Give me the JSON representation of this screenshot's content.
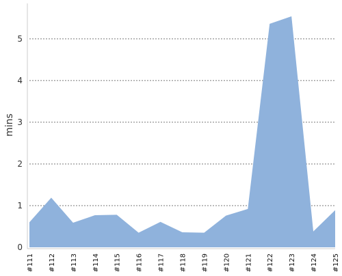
{
  "chart_data": {
    "type": "area",
    "categories": [
      "#111",
      "#112",
      "#113",
      "#114",
      "#115",
      "#116",
      "#117",
      "#118",
      "#119",
      "#120",
      "#121",
      "#122",
      "#123",
      "#124",
      "#125"
    ],
    "values": [
      0.6,
      1.19,
      0.59,
      0.77,
      0.78,
      0.35,
      0.61,
      0.36,
      0.35,
      0.76,
      0.92,
      5.36,
      5.54,
      0.38,
      0.89
    ],
    "ylabel": "mins",
    "ylim": [
      0,
      5.85
    ],
    "yticks": [
      0,
      1,
      2,
      3,
      4,
      5
    ],
    "grid": true,
    "colors": {
      "area": "#8fb2dc",
      "grid": "#777777",
      "axis": "#cccccc"
    }
  }
}
